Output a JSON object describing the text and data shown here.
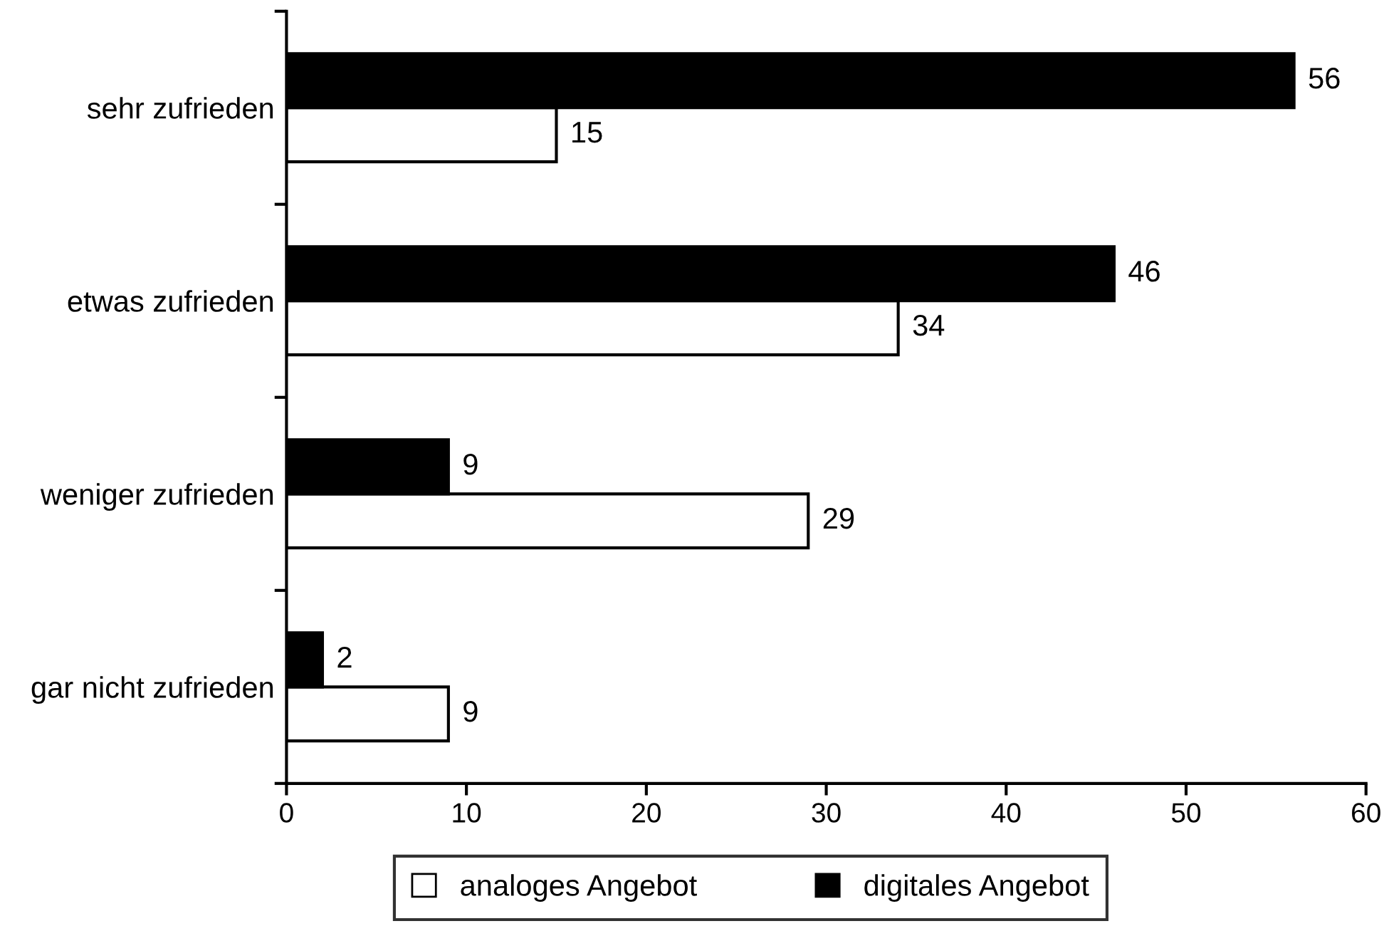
{
  "chart_data": {
    "type": "bar",
    "orientation": "horizontal",
    "categories": [
      "sehr zufrieden",
      "etwas zufrieden",
      "weniger zufrieden",
      "gar nicht zufrieden"
    ],
    "series": [
      {
        "name": "analoges Angebot",
        "color": "#ffffff",
        "values": [
          15,
          34,
          29,
          9
        ]
      },
      {
        "name": "digitales Angebot",
        "color": "#000000",
        "values": [
          56,
          46,
          9,
          2
        ]
      }
    ],
    "xlim": [
      0,
      60
    ],
    "xticks": [
      0,
      10,
      20,
      30,
      40,
      50,
      60
    ],
    "grid": false,
    "legend": "bottom",
    "data_labels": true
  }
}
